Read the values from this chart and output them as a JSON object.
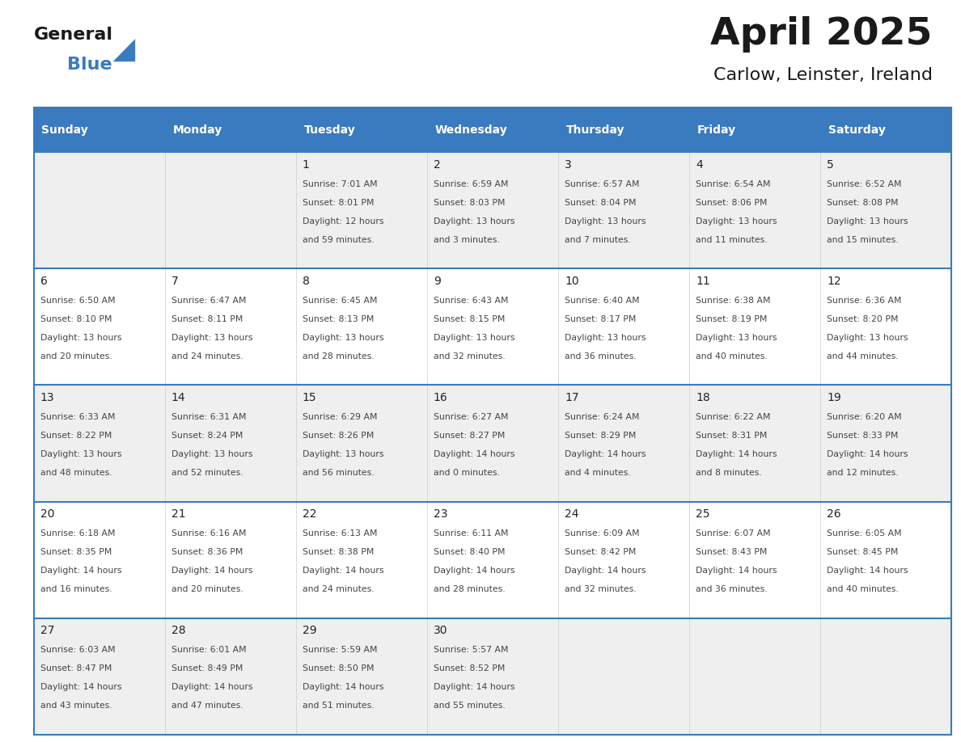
{
  "title": "April 2025",
  "subtitle": "Carlow, Leinster, Ireland",
  "days_of_week": [
    "Sunday",
    "Monday",
    "Tuesday",
    "Wednesday",
    "Thursday",
    "Friday",
    "Saturday"
  ],
  "header_bg": "#3a7bbf",
  "header_text": "#ffffff",
  "row_bg_odd": "#efefef",
  "row_bg_even": "#ffffff",
  "cell_text_color": "#444444",
  "day_num_color": "#222222",
  "border_color": "#3a7bbf",
  "calendar_data": [
    [
      null,
      null,
      {
        "day": "1",
        "sunrise": "7:01 AM",
        "sunset": "8:01 PM",
        "dl_hours": "12",
        "dl_mins": "59"
      },
      {
        "day": "2",
        "sunrise": "6:59 AM",
        "sunset": "8:03 PM",
        "dl_hours": "13",
        "dl_mins": "3"
      },
      {
        "day": "3",
        "sunrise": "6:57 AM",
        "sunset": "8:04 PM",
        "dl_hours": "13",
        "dl_mins": "7"
      },
      {
        "day": "4",
        "sunrise": "6:54 AM",
        "sunset": "8:06 PM",
        "dl_hours": "13",
        "dl_mins": "11"
      },
      {
        "day": "5",
        "sunrise": "6:52 AM",
        "sunset": "8:08 PM",
        "dl_hours": "13",
        "dl_mins": "15"
      }
    ],
    [
      {
        "day": "6",
        "sunrise": "6:50 AM",
        "sunset": "8:10 PM",
        "dl_hours": "13",
        "dl_mins": "20"
      },
      {
        "day": "7",
        "sunrise": "6:47 AM",
        "sunset": "8:11 PM",
        "dl_hours": "13",
        "dl_mins": "24"
      },
      {
        "day": "8",
        "sunrise": "6:45 AM",
        "sunset": "8:13 PM",
        "dl_hours": "13",
        "dl_mins": "28"
      },
      {
        "day": "9",
        "sunrise": "6:43 AM",
        "sunset": "8:15 PM",
        "dl_hours": "13",
        "dl_mins": "32"
      },
      {
        "day": "10",
        "sunrise": "6:40 AM",
        "sunset": "8:17 PM",
        "dl_hours": "13",
        "dl_mins": "36"
      },
      {
        "day": "11",
        "sunrise": "6:38 AM",
        "sunset": "8:19 PM",
        "dl_hours": "13",
        "dl_mins": "40"
      },
      {
        "day": "12",
        "sunrise": "6:36 AM",
        "sunset": "8:20 PM",
        "dl_hours": "13",
        "dl_mins": "44"
      }
    ],
    [
      {
        "day": "13",
        "sunrise": "6:33 AM",
        "sunset": "8:22 PM",
        "dl_hours": "13",
        "dl_mins": "48"
      },
      {
        "day": "14",
        "sunrise": "6:31 AM",
        "sunset": "8:24 PM",
        "dl_hours": "13",
        "dl_mins": "52"
      },
      {
        "day": "15",
        "sunrise": "6:29 AM",
        "sunset": "8:26 PM",
        "dl_hours": "13",
        "dl_mins": "56"
      },
      {
        "day": "16",
        "sunrise": "6:27 AM",
        "sunset": "8:27 PM",
        "dl_hours": "14",
        "dl_mins": "0"
      },
      {
        "day": "17",
        "sunrise": "6:24 AM",
        "sunset": "8:29 PM",
        "dl_hours": "14",
        "dl_mins": "4"
      },
      {
        "day": "18",
        "sunrise": "6:22 AM",
        "sunset": "8:31 PM",
        "dl_hours": "14",
        "dl_mins": "8"
      },
      {
        "day": "19",
        "sunrise": "6:20 AM",
        "sunset": "8:33 PM",
        "dl_hours": "14",
        "dl_mins": "12"
      }
    ],
    [
      {
        "day": "20",
        "sunrise": "6:18 AM",
        "sunset": "8:35 PM",
        "dl_hours": "14",
        "dl_mins": "16"
      },
      {
        "day": "21",
        "sunrise": "6:16 AM",
        "sunset": "8:36 PM",
        "dl_hours": "14",
        "dl_mins": "20"
      },
      {
        "day": "22",
        "sunrise": "6:13 AM",
        "sunset": "8:38 PM",
        "dl_hours": "14",
        "dl_mins": "24"
      },
      {
        "day": "23",
        "sunrise": "6:11 AM",
        "sunset": "8:40 PM",
        "dl_hours": "14",
        "dl_mins": "28"
      },
      {
        "day": "24",
        "sunrise": "6:09 AM",
        "sunset": "8:42 PM",
        "dl_hours": "14",
        "dl_mins": "32"
      },
      {
        "day": "25",
        "sunrise": "6:07 AM",
        "sunset": "8:43 PM",
        "dl_hours": "14",
        "dl_mins": "36"
      },
      {
        "day": "26",
        "sunrise": "6:05 AM",
        "sunset": "8:45 PM",
        "dl_hours": "14",
        "dl_mins": "40"
      }
    ],
    [
      {
        "day": "27",
        "sunrise": "6:03 AM",
        "sunset": "8:47 PM",
        "dl_hours": "14",
        "dl_mins": "43"
      },
      {
        "day": "28",
        "sunrise": "6:01 AM",
        "sunset": "8:49 PM",
        "dl_hours": "14",
        "dl_mins": "47"
      },
      {
        "day": "29",
        "sunrise": "5:59 AM",
        "sunset": "8:50 PM",
        "dl_hours": "14",
        "dl_mins": "51"
      },
      {
        "day": "30",
        "sunrise": "5:57 AM",
        "sunset": "8:52 PM",
        "dl_hours": "14",
        "dl_mins": "55"
      },
      null,
      null,
      null
    ]
  ],
  "logo_general_color": "#1a1a1a",
  "logo_blue_color": "#3a7bbf",
  "fig_width": 11.88,
  "fig_height": 9.18
}
